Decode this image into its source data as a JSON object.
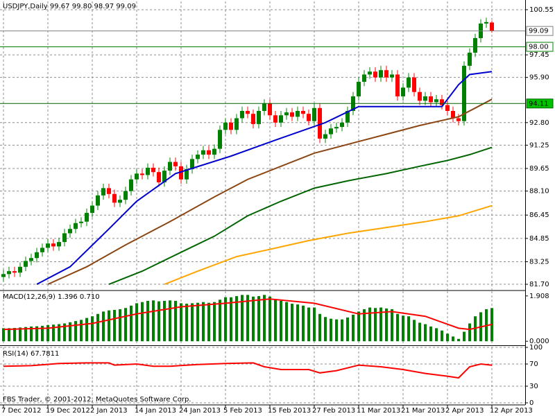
{
  "chart_data": [
    {
      "type": "candlestick",
      "title": "USDJPY,Daily  99.67 99.80 98.97 99.09",
      "watermark": "FBS Trader, © 2001-2012, MetaQuotes Software Corp.",
      "up_color": "#008000",
      "down_color": "#ff0000",
      "categories": [
        "7 Dec 2012",
        null,
        null,
        null,
        null,
        null,
        null,
        null,
        "19 Dec 2012",
        null,
        null,
        null,
        null,
        null,
        null,
        null,
        "2 Jan 2013",
        null,
        null,
        null,
        null,
        null,
        null,
        null,
        "14 Jan 2013",
        null,
        null,
        null,
        null,
        null,
        null,
        null,
        "24 Jan 2013",
        null,
        null,
        null,
        null,
        null,
        null,
        null,
        "5 Feb 2013",
        null,
        null,
        null,
        null,
        null,
        null,
        null,
        "15 Feb 2013",
        null,
        null,
        null,
        null,
        null,
        null,
        null,
        "27 Feb 2013",
        null,
        null,
        null,
        null,
        null,
        null,
        null,
        "11 Mar 2013",
        null,
        null,
        null,
        null,
        null,
        null,
        null,
        "21 Mar 2013",
        null,
        null,
        null,
        null,
        null,
        null,
        null,
        "2 Apr 2013",
        null,
        null,
        null,
        null,
        null,
        null,
        null,
        "12 Apr 2013"
      ],
      "open": [
        82.2,
        82.4,
        82.6,
        82.5,
        82.9,
        83.3,
        83.5,
        83.9,
        84.2,
        84.5,
        84.3,
        84.6,
        85.2,
        85.5,
        85.9,
        86.0,
        86.6,
        87.1,
        87.8,
        88.3,
        87.9,
        87.3,
        87.5,
        88.1,
        88.9,
        89.3,
        89.2,
        89.7,
        89.4,
        88.7,
        89.5,
        90.1,
        89.8,
        88.9,
        89.6,
        90.3,
        90.6,
        90.9,
        90.6,
        91.0,
        92.3,
        92.8,
        92.3,
        93.1,
        93.6,
        93.4,
        92.7,
        93.6,
        94.1,
        93.3,
        92.8,
        93.3,
        93.5,
        93.2,
        93.6,
        93.4,
        92.9,
        93.8,
        91.7,
        92.0,
        92.4,
        92.5,
        92.8,
        93.6,
        94.6,
        95.6,
        96.1,
        96.3,
        95.9,
        96.4,
        95.9,
        96.1,
        94.6,
        95.2,
        95.9,
        94.9,
        94.3,
        94.6,
        94.2,
        94.4,
        94.0,
        93.6,
        93.1,
        92.9,
        96.7,
        97.6,
        98.6,
        99.6,
        99.67
      ],
      "high": [
        82.7,
        82.9,
        82.9,
        83.2,
        83.6,
        83.8,
        84.2,
        84.5,
        84.8,
        84.8,
        84.9,
        85.5,
        85.8,
        86.2,
        86.3,
        86.9,
        87.4,
        88.1,
        88.6,
        88.6,
        88.2,
        87.8,
        88.4,
        89.2,
        89.6,
        89.6,
        90.0,
        90.0,
        89.7,
        89.8,
        90.4,
        90.4,
        90.1,
        89.9,
        90.6,
        90.9,
        91.2,
        91.2,
        91.3,
        92.6,
        93.1,
        93.1,
        93.4,
        93.9,
        93.9,
        93.7,
        93.9,
        94.4,
        94.4,
        93.6,
        93.6,
        93.8,
        93.8,
        93.9,
        93.9,
        93.7,
        94.1,
        94.1,
        92.3,
        92.7,
        92.8,
        93.1,
        93.9,
        94.9,
        95.9,
        96.4,
        96.6,
        96.6,
        96.7,
        96.7,
        96.4,
        96.4,
        95.5,
        96.2,
        96.2,
        95.2,
        94.9,
        94.9,
        94.7,
        94.7,
        94.3,
        93.9,
        93.4,
        97.0,
        97.9,
        98.9,
        99.9,
        100.0,
        99.8
      ],
      "low": [
        81.9,
        82.1,
        82.2,
        82.2,
        82.6,
        83.0,
        83.2,
        83.6,
        83.9,
        84.0,
        84.0,
        84.3,
        84.9,
        85.2,
        85.6,
        85.7,
        86.3,
        86.8,
        87.5,
        87.6,
        87.0,
        87.0,
        87.2,
        87.8,
        88.6,
        88.9,
        88.9,
        89.1,
        88.4,
        88.4,
        89.2,
        89.5,
        88.6,
        88.6,
        89.3,
        90.0,
        90.3,
        90.3,
        90.3,
        90.7,
        92.0,
        92.0,
        92.0,
        92.8,
        93.1,
        92.4,
        92.4,
        93.3,
        93.0,
        92.5,
        92.5,
        93.0,
        92.9,
        92.9,
        93.1,
        92.6,
        92.6,
        91.4,
        91.4,
        91.7,
        92.1,
        92.2,
        92.5,
        93.3,
        94.3,
        95.3,
        95.8,
        95.6,
        95.6,
        95.6,
        95.6,
        94.3,
        94.3,
        94.9,
        94.6,
        94.0,
        94.0,
        93.9,
        93.9,
        93.7,
        93.3,
        92.8,
        92.6,
        92.6,
        96.4,
        97.3,
        98.3,
        99.3,
        98.97
      ],
      "close": [
        82.4,
        82.6,
        82.5,
        82.9,
        83.3,
        83.5,
        83.9,
        84.2,
        84.5,
        84.3,
        84.6,
        85.2,
        85.5,
        85.9,
        86.0,
        86.6,
        87.1,
        87.8,
        88.3,
        87.9,
        87.3,
        87.5,
        88.1,
        88.9,
        89.3,
        89.2,
        89.7,
        89.4,
        88.7,
        89.5,
        90.1,
        89.8,
        88.9,
        89.6,
        90.3,
        90.6,
        90.9,
        90.6,
        91.0,
        92.3,
        92.8,
        92.3,
        93.1,
        93.6,
        93.4,
        92.7,
        93.6,
        94.1,
        93.3,
        92.8,
        93.3,
        93.5,
        93.2,
        93.6,
        93.4,
        92.9,
        93.8,
        91.7,
        92.0,
        92.4,
        92.5,
        92.8,
        93.6,
        94.6,
        95.6,
        96.1,
        96.3,
        95.9,
        96.4,
        95.9,
        96.1,
        94.6,
        95.2,
        95.9,
        94.9,
        94.3,
        94.6,
        94.2,
        94.4,
        94.0,
        93.6,
        93.1,
        92.9,
        96.7,
        97.6,
        98.6,
        99.6,
        99.7,
        99.09
      ],
      "series": [
        {
          "color": "#0000cd",
          "x": [
            6,
            12,
            19,
            24,
            31,
            41,
            49,
            58,
            64,
            79,
            82,
            84,
            88
          ],
          "values": [
            81.7,
            82.9,
            85.5,
            87.4,
            89.3,
            90.5,
            91.6,
            92.8,
            93.9,
            93.9,
            95.4,
            96.1,
            96.3
          ]
        },
        {
          "color": "#8b4513",
          "x": [
            8,
            15,
            22,
            30,
            38,
            44,
            50,
            56,
            63,
            69,
            75,
            82,
            88
          ],
          "values": [
            81.7,
            82.9,
            84.4,
            86.0,
            87.7,
            88.9,
            89.8,
            90.7,
            91.4,
            92.0,
            92.6,
            93.2,
            94.4
          ]
        },
        {
          "color": "#006400",
          "x": [
            19,
            25,
            32,
            38,
            44,
            50,
            56,
            62,
            69,
            75,
            80,
            84,
            88
          ],
          "values": [
            81.7,
            82.6,
            83.9,
            85.0,
            86.4,
            87.4,
            88.3,
            88.8,
            89.3,
            89.8,
            90.2,
            90.6,
            91.1
          ]
        },
        {
          "color": "#ffa500",
          "x": [
            29,
            35,
            42,
            48,
            55,
            62,
            69,
            76,
            82,
            88
          ],
          "values": [
            81.7,
            82.6,
            83.6,
            84.1,
            84.7,
            85.2,
            85.6,
            86.0,
            86.4,
            87.1
          ]
        }
      ],
      "hlines": [
        {
          "value": 99.09,
          "label": "99.09",
          "color": "#808080",
          "box": "#ffffff"
        },
        {
          "value": 98,
          "label": "98.00",
          "color": "#008000",
          "box": "#ffffff"
        },
        {
          "value": 94.11,
          "label": "94.11",
          "color": "#006400",
          "box": "#00c000"
        }
      ],
      "ylim": [
        81.32,
        101.12
      ],
      "yticks": [
        100.55,
        97.45,
        {
          "value": 95.9,
          "label": "95.90"
        },
        {
          "value": 92.8,
          "label": "92.80"
        },
        91.25,
        89.65,
        {
          "value": 88.1,
          "label": "88.10"
        },
        86.45,
        84.85,
        83.25,
        {
          "value": 81.7,
          "label": "81.70"
        }
      ],
      "grid": true
    },
    {
      "type": "bar",
      "title": "MACD(12,26,9) 1.396 0.710",
      "color": "#008000",
      "values": [
        0.55,
        0.55,
        0.56,
        0.58,
        0.6,
        0.62,
        0.63,
        0.65,
        0.68,
        0.7,
        0.72,
        0.75,
        0.8,
        0.85,
        0.9,
        0.98,
        1.05,
        1.15,
        1.25,
        1.3,
        1.32,
        1.35,
        1.4,
        1.5,
        1.6,
        1.65,
        1.7,
        1.72,
        1.68,
        1.7,
        1.72,
        1.7,
        1.6,
        1.58,
        1.6,
        1.62,
        1.65,
        1.62,
        1.65,
        1.75,
        1.85,
        1.85,
        1.9,
        1.95,
        1.95,
        1.88,
        1.9,
        1.95,
        1.88,
        1.78,
        1.7,
        1.65,
        1.58,
        1.55,
        1.5,
        1.42,
        1.42,
        1.15,
        1.02,
        0.95,
        0.92,
        0.92,
        1.0,
        1.12,
        1.25,
        1.35,
        1.42,
        1.4,
        1.42,
        1.38,
        1.35,
        1.15,
        1.08,
        1.05,
        0.9,
        0.78,
        0.72,
        0.62,
        0.55,
        0.45,
        0.32,
        0.2,
        0.1,
        0.4,
        0.75,
        1.05,
        1.22,
        1.35,
        1.396
      ],
      "series": [
        {
          "color": "#ff0000",
          "x": [
            0,
            8,
            16,
            24,
            32,
            40,
            48,
            56,
            64,
            70,
            76,
            82,
            84,
            88
          ],
          "values": [
            0.5,
            0.55,
            0.75,
            1.15,
            1.45,
            1.6,
            1.78,
            1.6,
            1.15,
            1.25,
            1.05,
            0.55,
            0.5,
            0.71
          ]
        }
      ],
      "ylim": [
        -0.14,
        2.107
      ],
      "yticks": [
        1.908,
        {
          "value": 0,
          "label": "0.000"
        }
      ],
      "grid": false
    },
    {
      "type": "line",
      "title": "RSI(14) 67.7811",
      "series": [
        {
          "color": "#ff0000",
          "x": [
            0,
            5,
            10,
            15,
            19,
            20,
            24,
            27,
            30,
            35,
            40,
            45,
            47,
            50,
            55,
            57,
            60,
            64,
            68,
            72,
            76,
            80,
            82,
            84,
            86,
            88
          ],
          "values": [
            66,
            67,
            71,
            72,
            72,
            68,
            70,
            66,
            66,
            69,
            71,
            72,
            65,
            60,
            60,
            54,
            58,
            68,
            65,
            60,
            53,
            48,
            45,
            65,
            70,
            67.7811
          ]
        }
      ],
      "ylim": [
        0,
        100
      ],
      "yticks": [
        100,
        70,
        30,
        0
      ],
      "grid": true
    }
  ]
}
